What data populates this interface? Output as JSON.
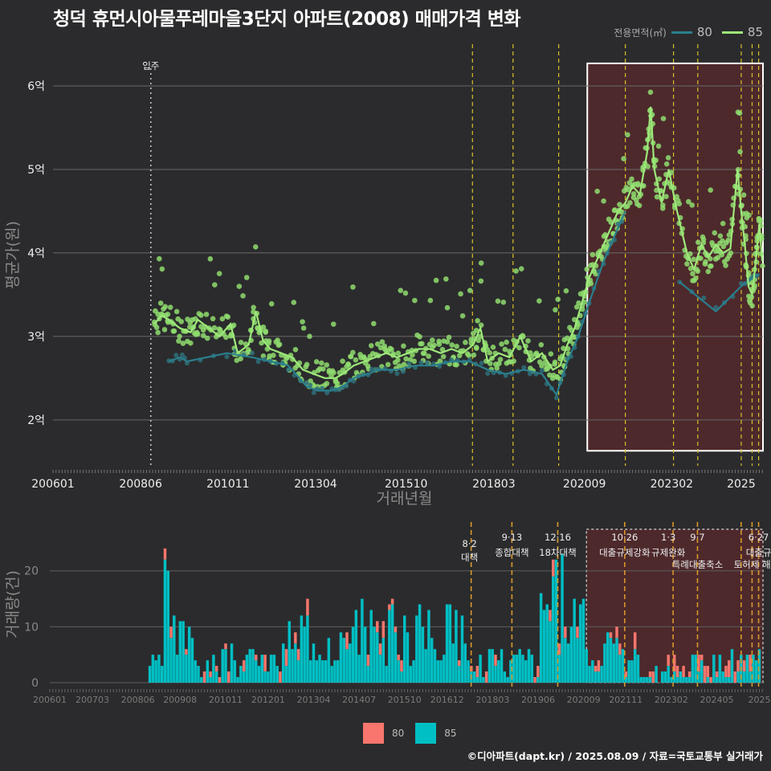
{
  "title": "청덕 휴먼시아물푸레마을3단지 아파트(2008) 매매가격 변화",
  "footer": "©디아파트(dapt.kr) / 2025.08.09 / 자료=국토교통부 실거래가",
  "legend_title": "전용면적(㎡)",
  "colors": {
    "s80_line": "#2a7f8e",
    "s85_line": "#9ee87a",
    "s85_point": "#8fdc6e",
    "bar80": "#f8766d",
    "bar85": "#00bfc4",
    "highlight": "#5a2a2c",
    "policy": "#d9c12a",
    "policy2": "#d9992a"
  },
  "chart_data": [
    {
      "type": "line",
      "ylabel": "평균가(원)",
      "xlabel": "거래년월",
      "x_ticks": [
        "200601",
        "200806",
        "201011",
        "201304",
        "201510",
        "201803",
        "202009",
        "202302",
        "2025"
      ],
      "y_ticks": [
        "2억",
        "3억",
        "4억",
        "5억",
        "6억"
      ],
      "ylim": [
        1.45,
        6.5
      ],
      "xlim": [
        2006.0,
        2025.6
      ],
      "move_in_label": "입주",
      "move_in_x": 2008.7,
      "policy_lines_x": [
        2017.58,
        2018.7,
        2019.96,
        2021.8,
        2023.13,
        2023.8,
        2025.0,
        2025.3,
        2025.48
      ],
      "highlight_x": [
        2020.75,
        2025.6
      ],
      "highlight_y": [
        1.63,
        6.27
      ],
      "series": [
        {
          "name": "80",
          "points": [
            [
              2009.2,
              2.7
            ],
            [
              2009.5,
              2.75
            ],
            [
              2009.7,
              2.7
            ],
            [
              2010.8,
              2.8
            ],
            [
              2011.5,
              2.75
            ],
            [
              2012.0,
              2.7
            ],
            [
              2012.5,
              2.65
            ],
            [
              2013.0,
              2.4
            ],
            [
              2013.3,
              2.35
            ],
            [
              2013.7,
              2.35
            ],
            [
              2014.0,
              2.4
            ],
            [
              2014.3,
              2.5
            ],
            [
              2014.7,
              2.55
            ],
            [
              2015.0,
              2.6
            ],
            [
              2015.5,
              2.6
            ],
            [
              2016.0,
              2.65
            ],
            [
              2016.5,
              2.65
            ],
            [
              2017.0,
              2.7
            ],
            [
              2017.5,
              2.7
            ],
            [
              2018.0,
              2.6
            ],
            [
              2018.5,
              2.55
            ],
            [
              2019.0,
              2.6
            ],
            [
              2019.5,
              2.55
            ],
            [
              2019.9,
              2.3
            ],
            [
              2020.2,
              2.7
            ],
            [
              2020.5,
              3.0
            ],
            [
              2020.8,
              3.4
            ],
            [
              2021.2,
              3.9
            ],
            [
              2021.5,
              4.2
            ],
            [
              2021.8,
              4.5
            ],
            [
              2023.3,
              3.65
            ],
            [
              2024.3,
              3.3
            ],
            [
              2025.0,
              3.6
            ],
            [
              2025.3,
              3.7
            ],
            [
              2025.5,
              3.75
            ]
          ]
        },
        {
          "name": "85",
          "points": [
            [
              2008.8,
              3.15
            ],
            [
              2009.0,
              3.25
            ],
            [
              2009.2,
              3.2
            ],
            [
              2009.5,
              3.1
            ],
            [
              2009.8,
              3.05
            ],
            [
              2010.0,
              3.2
            ],
            [
              2010.3,
              3.1
            ],
            [
              2010.6,
              3.0
            ],
            [
              2010.9,
              3.15
            ],
            [
              2011.1,
              2.8
            ],
            [
              2011.4,
              2.9
            ],
            [
              2011.6,
              3.3
            ],
            [
              2011.8,
              2.95
            ],
            [
              2012.0,
              2.85
            ],
            [
              2012.3,
              2.8
            ],
            [
              2012.6,
              2.75
            ],
            [
              2012.9,
              2.6
            ],
            [
              2013.2,
              2.55
            ],
            [
              2013.5,
              2.5
            ],
            [
              2013.8,
              2.5
            ],
            [
              2014.0,
              2.55
            ],
            [
              2014.3,
              2.65
            ],
            [
              2014.6,
              2.7
            ],
            [
              2014.9,
              2.75
            ],
            [
              2015.2,
              2.8
            ],
            [
              2015.5,
              2.75
            ],
            [
              2015.8,
              2.8
            ],
            [
              2016.1,
              2.85
            ],
            [
              2016.4,
              2.85
            ],
            [
              2016.7,
              2.8
            ],
            [
              2017.0,
              2.85
            ],
            [
              2017.3,
              2.8
            ],
            [
              2017.6,
              2.9
            ],
            [
              2017.8,
              3.1
            ],
            [
              2018.0,
              2.7
            ],
            [
              2018.3,
              2.8
            ],
            [
              2018.6,
              2.75
            ],
            [
              2018.9,
              3.0
            ],
            [
              2019.2,
              2.7
            ],
            [
              2019.5,
              2.8
            ],
            [
              2019.8,
              2.6
            ],
            [
              2020.0,
              2.65
            ],
            [
              2020.2,
              2.9
            ],
            [
              2020.4,
              3.1
            ],
            [
              2020.6,
              3.4
            ],
            [
              2020.8,
              3.7
            ],
            [
              2021.0,
              3.9
            ],
            [
              2021.2,
              4.1
            ],
            [
              2021.4,
              4.3
            ],
            [
              2021.6,
              4.5
            ],
            [
              2021.8,
              4.6
            ],
            [
              2022.0,
              4.8
            ],
            [
              2022.2,
              4.7
            ],
            [
              2022.4,
              5.2
            ],
            [
              2022.5,
              5.75
            ],
            [
              2022.6,
              5.0
            ],
            [
              2022.8,
              4.6
            ],
            [
              2023.0,
              5.0
            ],
            [
              2023.2,
              4.55
            ],
            [
              2023.5,
              4.0
            ],
            [
              2023.7,
              3.8
            ],
            [
              2023.9,
              4.1
            ],
            [
              2024.1,
              3.95
            ],
            [
              2024.3,
              4.1
            ],
            [
              2024.5,
              4.0
            ],
            [
              2024.7,
              4.05
            ],
            [
              2024.9,
              5.0
            ],
            [
              2025.0,
              4.5
            ],
            [
              2025.1,
              4.1
            ],
            [
              2025.2,
              3.6
            ],
            [
              2025.3,
              3.5
            ],
            [
              2025.4,
              3.9
            ],
            [
              2025.5,
              4.35
            ],
            [
              2025.58,
              3.9
            ]
          ]
        }
      ]
    },
    {
      "type": "bar",
      "ylabel": "거래량(건)",
      "y_ticks": [
        "0",
        "10",
        "20"
      ],
      "ylim": [
        0,
        28
      ],
      "x_ticks": [
        "200601",
        "200703",
        "200806",
        "200908",
        "201011",
        "201201",
        "201304",
        "201407",
        "201510",
        "201612",
        "201803",
        "201906",
        "202009",
        "202111",
        "202302",
        "202405",
        "2025"
      ],
      "series": [
        {
          "name": "80"
        },
        {
          "name": "85"
        }
      ],
      "annotations": [
        {
          "x": 2017.58,
          "date": "8·2",
          "label": "대책"
        },
        {
          "x": 2018.7,
          "date": "9·13",
          "label": "종합대책"
        },
        {
          "x": 2019.96,
          "date": "12·16",
          "label": "18차대책"
        },
        {
          "x": 2021.8,
          "date": "10·26",
          "label": "대출규제강화"
        },
        {
          "x": 2023.0,
          "date": "1·3",
          "label": "규제완화"
        },
        {
          "x": 2023.8,
          "date": "9·7",
          "label": "특례대출축소"
        },
        {
          "x": 2025.48,
          "date": "6·27",
          "label": "대출규"
        }
      ],
      "annotation_extra": "토허제 해제"
    }
  ]
}
